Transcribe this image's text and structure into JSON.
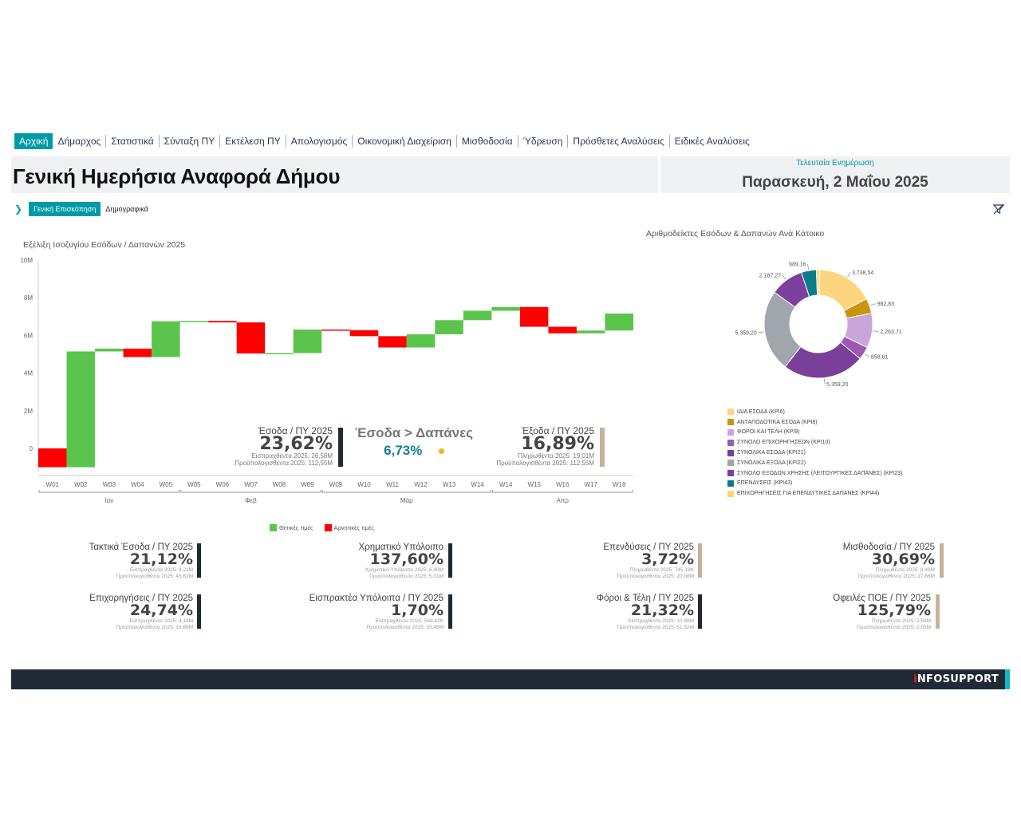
{
  "nav": {
    "items": [
      "Αρχική",
      "Δήμαρχος",
      "Στατιστικά",
      "Σύνταξη ΠΥ",
      "Εκτέλεση ΠΥ",
      "Απολογισμός",
      "Οικονομική Διαχείριση",
      "Μισθοδοσία",
      "Ύδρευση",
      "Πρόσθετες Αναλύσεις",
      "Ειδικές Αναλύσεις"
    ]
  },
  "header": {
    "title": "Γενική Ημερήσια Αναφορά Δήμου",
    "update_label": "Τελευταία Ενημέρωση",
    "update_date": "Παρασκευή, 2 Μαΐου 2025"
  },
  "subnav": {
    "items": [
      "Γενική Επισκόπηση",
      "Δημογραφικά"
    ]
  },
  "colors": {
    "accent": "#009aa6",
    "positive": "#5bc44d",
    "negative": "#ff0000",
    "navy": "#1f2a36",
    "tan": "#c7b299"
  },
  "waterfall": {
    "title": "Εξέλιξη Ισοζυγίου Εσόδων / Δαπανών 2025",
    "months": [
      "Ιαν",
      "Φεβ",
      "Μάρ",
      "Απρ"
    ],
    "legend": {
      "positive": "Θετικές τιμές",
      "negative": "Αρνητικές τιμές"
    }
  },
  "chart_data": [
    {
      "type": "waterfall",
      "title": "Εξέλιξη Ισοζυγίου Εσόδων / Δαπανών 2025",
      "ylim": [
        -1000000,
        10000000
      ],
      "yticks": [
        "0",
        "2M",
        "4M",
        "6M",
        "8M",
        "10M"
      ],
      "categories": [
        "W01",
        "W02",
        "W03",
        "W04",
        "W05",
        "W05",
        "W06",
        "W07",
        "W08",
        "W09",
        "W09",
        "W10",
        "W11",
        "W12",
        "W13",
        "W14",
        "W14",
        "W15",
        "W16",
        "W17",
        "W18"
      ],
      "deltas": [
        -1000000,
        6150000,
        150000,
        -450000,
        1900000,
        20000,
        -80000,
        -1650000,
        20000,
        1250000,
        -30000,
        -320000,
        -600000,
        700000,
        750000,
        500000,
        200000,
        -1050000,
        -350000,
        150000,
        900000
      ]
    },
    {
      "type": "pie",
      "title": "Αριθμοδείκτες Εσόδων & Δαπανών Ανά Κάτοικο",
      "labels": [
        "ΙΔΙΑ ΕΣΟΔΑ (KPI6)",
        "ΑΝΤΑΠΟΔΟΤΙΚΑ ΕΣΟΔΑ (KPI8)",
        "ΦΟΡΟΙ ΚΑΙ ΤΕΛΗ (KPI9)",
        "ΣΥΝΟΛΟ ΕΠΙΧΟΡΗΓΗΣΕΩΝ (KPI10)",
        "ΣΥΝΟΛΙΚΑ ΕΣΟΔΑ (KPI21)",
        "ΣΥΝΟΛΙΚΑ ΕΞΟΔΑ (KPI22)",
        "ΣΥΝΟΛΟ ΕΞΟΔΩΝ ΧΡΗΣΗΣ (ΛΕΙΤΟΥΡΓΙΚΕΣ ΔΑΠΑΝΕΣ) (KPI23)",
        "ΕΠΕΝΔΥΣΕΙΣ (KPI43)",
        "ΕΠΙΧΟΡΗΓΗΣΕΙΣ ΓΙΑ ΕΠΕΝΔΥΤΙΚΕΣ ΔΑΠΑΝΕΣ (KPI44)"
      ],
      "values": [
        3738.54,
        982.83,
        2263.71,
        858.61,
        5359.2,
        5359.2,
        2187.27,
        989.16,
        200
      ],
      "value_labels": [
        "3.738,54",
        "982,83",
        "2.263,71",
        "858,61",
        "5.359,20",
        "5.359,20",
        "2.187,27",
        "989,16",
        ""
      ],
      "colors": [
        "#fdd57f",
        "#c9950c",
        "#c9a5dc",
        "#9b59b6",
        "#7a3f98",
        "#a0a6ac",
        "#7b3f9e",
        "#0a7d8c",
        "#ffd36a"
      ]
    }
  ],
  "kpis_top": {
    "esoda": {
      "label": "Έσοδα / ΠΥ 2025",
      "value": "23,62%",
      "line1": "Εισπραχθέντα 2025: 26,58M",
      "line2": "Προϋπολογισθέντα 2025: 112,55M"
    },
    "esoda_dapanes": {
      "label": "Έσοδα > Δαπάνες",
      "value": "6,73%"
    },
    "exoda": {
      "label": "Έξοδα / ΠΥ 2025",
      "value": "16,89%",
      "line1": "Πληρωθέντα 2025: 19,01M",
      "line2": "Προϋπολογισθέντα 2025: 112,55M"
    }
  },
  "kpis_bottom": [
    {
      "label": "Τακτικά Έσοδα / ΠΥ 2025",
      "value": "21,12%",
      "line1": "Εισπραχθέντα 2025: 9,21M",
      "line2": "Προϋπολογισθέντα 2025: 43,62M"
    },
    {
      "label": "Χρηματικό Υπόλοιπο",
      "value": "137,60%",
      "line1": "Χρηματικό Υπόλοιπο 2025: 6,90M",
      "line2": "Προϋπολογισθέντα 2025: 5,01M"
    },
    {
      "label": "Επενδύσεις / ΠΥ 2025",
      "value": "3,72%",
      "line1": "Πληρωθέντα 2025: 745,19K",
      "line2": "Προϋπολογισθέντα 2025: 20,06M"
    },
    {
      "label": "Μισθοδοσία / ΠΥ 2025",
      "value": "30,69%",
      "line1": "Πληρωθέντα 2025: 8,49M",
      "line2": "Προϋπολογισθέντα 2025: 27,66M"
    },
    {
      "label": "Επιχορηγήσεις / ΠΥ 2025",
      "value": "24,74%",
      "line1": "Εισπραχθέντα 2025: 4,18M",
      "line2": "Προϋπολογισθέντα 2025: 16,89M"
    },
    {
      "label": "Εισπρακτέα Υπόλοιπα / ΠΥ 2025",
      "value": "1,70%",
      "line1": "Εισπραχθέντα 2025: 569,42K",
      "line2": "Προϋπολογισθέντα 2025: 33,45M"
    },
    {
      "label": "Φόροι & Τέλη / ΠΥ 2025",
      "value": "21,32%",
      "line1": "Εισπραχθέντα 2025: 10,98M",
      "line2": "Προϋπολογισθέντα 2025: 51,52M"
    },
    {
      "label": "Οφειλές ΠΟΕ / ΠΥ 2025",
      "value": "125,79%",
      "line1": "Πληρωθέντα 2025: 2,58M",
      "line2": "Προϋπολογισθέντα 2025: 2,05M"
    }
  ],
  "footer": {
    "brand_i": "i",
    "brand_rest": "NFOSUPPORT"
  }
}
